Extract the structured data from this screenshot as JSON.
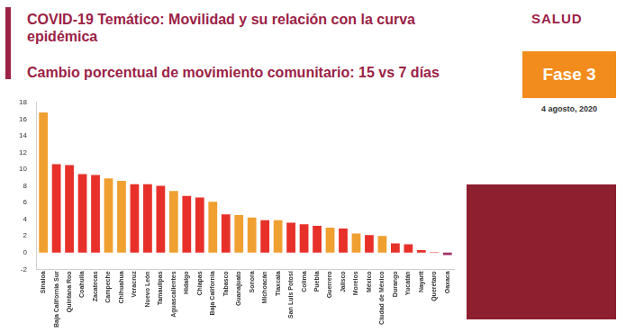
{
  "chart_data": {
    "type": "bar",
    "title": "COVID-19 Temático: Movilidad y su relación con la curva epidémica",
    "subtitle": "Cambio porcentual de movimiento comunitario: 15 vs 7 días",
    "annotations": [
      "SALUD",
      "Fase 3",
      "4 agosto, 2020"
    ],
    "categories": [
      "Sinaloa",
      "Baja California Sur",
      "Quintana Roo",
      "Coahuila",
      "Zacatecas",
      "Campeche",
      "Chihuahua",
      "Veracruz",
      "Nuevo León",
      "Tamaulipas",
      "Aguascalientes",
      "Hidalgo",
      "Chiapas",
      "Baja California",
      "Tabasco",
      "Guanajuato",
      "Sonora",
      "Michoacán",
      "Tlaxcala",
      "San Luis Potosí",
      "Colima",
      "Puebla",
      "Guerrero",
      "Jalisco",
      "Morelos",
      "México",
      "Ciudad de México",
      "Durango",
      "Yucatán",
      "Nayarit",
      "Querétaro",
      "Oaxaca"
    ],
    "values": [
      16.8,
      10.6,
      10.5,
      9.4,
      9.3,
      8.9,
      8.6,
      8.2,
      8.2,
      8.0,
      7.4,
      6.8,
      6.6,
      6.1,
      4.6,
      4.5,
      4.2,
      3.9,
      3.9,
      3.6,
      3.4,
      3.2,
      3.0,
      2.9,
      2.3,
      2.1,
      2.0,
      1.1,
      1.0,
      0.3,
      0.05,
      -0.3
    ],
    "colors": [
      "#f0a030",
      "#e8302a",
      "#e8302a",
      "#e8302a",
      "#e8302a",
      "#f0a030",
      "#f0a030",
      "#e8302a",
      "#e8302a",
      "#e8302a",
      "#f0a030",
      "#e8302a",
      "#e8302a",
      "#f0a030",
      "#e8302a",
      "#f0a030",
      "#f0a030",
      "#e8302a",
      "#f0a030",
      "#e8302a",
      "#e8302a",
      "#e8302a",
      "#f0a030",
      "#e8302a",
      "#f0a030",
      "#e8302a",
      "#f0a030",
      "#e8302a",
      "#e8302a",
      "#e8302a",
      "#e8302a",
      "#a0306a"
    ],
    "ylim": [
      -2,
      18
    ],
    "yticks": [
      -2,
      0,
      2,
      4,
      6,
      8,
      10,
      12,
      14,
      16,
      18
    ],
    "grid": false
  }
}
